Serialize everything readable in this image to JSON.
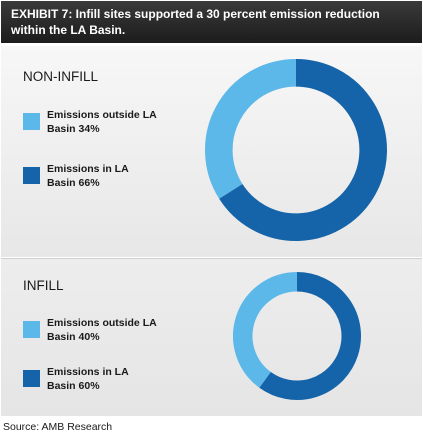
{
  "header": {
    "title": "EXHIBIT 7: Infill sites supported a 30 percent emission reduction within the LA Basin."
  },
  "colors": {
    "outside": "#5bb8e8",
    "inside": "#1563a8",
    "header_bg": "#2a2a2a"
  },
  "chart_data": [
    {
      "type": "pie",
      "title": "NON-INFILL",
      "categories": [
        "Emissions outside LA Basin 34%",
        "Emissions in LA Basin 66%"
      ],
      "values": [
        34,
        66
      ],
      "legend": "left"
    },
    {
      "type": "pie",
      "title": "INFILL",
      "categories": [
        "Emissions outside LA Basin 40%",
        "Emissions in LA Basin 60%"
      ],
      "values": [
        40,
        60
      ],
      "legend": "left"
    }
  ],
  "source": "Source: AMB Research"
}
